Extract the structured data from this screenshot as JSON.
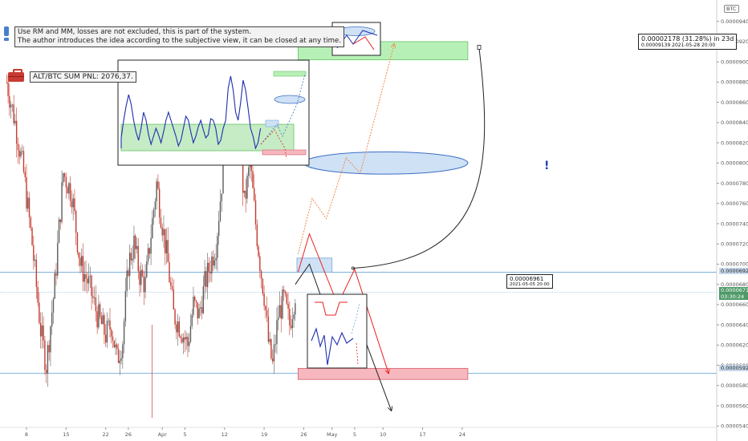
{
  "notes": {
    "line1": "Use RM and MM, losses are not excluded, this is part of the system.",
    "line2": "The author introduces the idea according to the subjective view, it can be closed at any time."
  },
  "pnl": {
    "label": "ALT/BTC SUM PNL: 2076,37."
  },
  "currency_label": "BTC",
  "exclamation": "!",
  "projection": {
    "main": "0.00002178 (31.28%) in 23d",
    "sub": "0.00009139     2021-05-28  20:00"
  },
  "marker": {
    "price": "0.00006961",
    "date": "2021-05-05 20:00"
  },
  "price_tags": {
    "upper": "0.00006927",
    "current": "0.00006717",
    "countdown": "03:30:24",
    "lower": "0.00005923"
  },
  "chart_data": {
    "type": "candlestick",
    "y_axis": {
      "min": 5.41e-05,
      "max": 9.58e-05,
      "ticks": [
        "0.00009400",
        "0.00009200",
        "0.00009000",
        "0.00008800",
        "0.00008600",
        "0.00008400",
        "0.00008200",
        "0.00008000",
        "0.00007800",
        "0.00007600",
        "0.00007400",
        "0.00007200",
        "0.00007000",
        "0.00006800",
        "0.00006600",
        "0.00006400",
        "0.00006200",
        "0.00006000",
        "0.00005800",
        "0.00005600",
        "0.00005400"
      ]
    },
    "x_axis": {
      "ticks": [
        {
          "label": "8",
          "day": 0
        },
        {
          "label": "15",
          "day": 7
        },
        {
          "label": "22",
          "day": 14
        },
        {
          "label": "26",
          "day": 18
        },
        {
          "label": "Apr",
          "day": 24
        },
        {
          "label": "5",
          "day": 28
        },
        {
          "label": "12",
          "day": 35
        },
        {
          "label": "19",
          "day": 42
        },
        {
          "label": "26",
          "day": 49
        },
        {
          "label": "May",
          "day": 54
        },
        {
          "label": "5",
          "day": 58
        },
        {
          "label": "10",
          "day": 63
        },
        {
          "label": "17",
          "day": 70
        },
        {
          "label": "24",
          "day": 77
        }
      ]
    },
    "price_path": [
      [
        -3.5,
        8.8e-05
      ],
      [
        -2,
        8.4e-05
      ],
      [
        -0.5,
        7.9e-05
      ],
      [
        1,
        7.2e-05
      ],
      [
        2.5,
        6.35e-05
      ],
      [
        3.5,
        6e-05
      ],
      [
        5,
        6.8e-05
      ],
      [
        6.5,
        7.9e-05
      ],
      [
        8,
        7.7e-05
      ],
      [
        9.5,
        7e-05
      ],
      [
        11,
        6.8e-05
      ],
      [
        12.5,
        6.5e-05
      ],
      [
        14,
        6.3e-05
      ],
      [
        15,
        6.4e-05
      ],
      [
        16,
        6.05e-05
      ],
      [
        17,
        6.25e-05
      ],
      [
        18,
        7e-05
      ],
      [
        19,
        7.2e-05
      ],
      [
        20,
        6.9e-05
      ],
      [
        21,
        6.8e-05
      ],
      [
        22,
        7.3e-05
      ],
      [
        23,
        7.8e-05
      ],
      [
        24,
        7.4e-05
      ],
      [
        25,
        7e-05
      ],
      [
        26,
        6.5e-05
      ],
      [
        27,
        6.4e-05
      ],
      [
        28.5,
        6.2e-05
      ],
      [
        29.5,
        6.6e-05
      ],
      [
        30.5,
        6.5e-05
      ],
      [
        31.5,
        6.8e-05
      ],
      [
        32.5,
        7e-05
      ],
      [
        33.5,
        7.2e-05
      ],
      [
        34.5,
        7.8e-05
      ],
      [
        35.5,
        8.8e-05
      ],
      [
        36.5,
        8.1e-05
      ],
      [
        37.5,
        8.3e-05
      ],
      [
        38.5,
        7.6e-05
      ],
      [
        39.5,
        8e-05
      ],
      [
        40.5,
        7.4e-05
      ],
      [
        41.5,
        6.9e-05
      ],
      [
        42,
        6.7e-05
      ],
      [
        42.8,
        6.2e-05
      ],
      [
        43.5,
        6e-05
      ],
      [
        44.5,
        6.5e-05
      ],
      [
        45.5,
        6.65e-05
      ],
      [
        46.5,
        6.4e-05
      ],
      [
        47.5,
        6.72e-05
      ]
    ],
    "horizontal_lines": [
      6.92e-05,
      6.72e-05,
      5.92e-05
    ],
    "zones": [
      {
        "name": "target-zone",
        "x": [
          48,
          78
        ],
        "y": [
          9.02e-05,
          9.2e-05
        ],
        "color": "#b7f0b7",
        "stroke": "#66c266"
      },
      {
        "name": "entry-zone",
        "x": [
          47.8,
          54
        ],
        "y": [
          6.92e-05,
          7.06e-05
        ],
        "color": "#cfe1f5",
        "stroke": "#7aa8d8"
      },
      {
        "name": "stop-zone",
        "x": [
          48,
          78
        ],
        "y": [
          5.86e-05,
          5.97e-05
        ],
        "color": "#f6b7be",
        "stroke": "#d85f6c"
      }
    ],
    "ellipse": {
      "cx": 63.5,
      "cy": 8e-05,
      "rx": 14.5,
      "ry": 1.1e-06,
      "color": "#cfe1f5",
      "stroke": "#3b6fc4"
    },
    "paths": [
      {
        "name": "orange-path",
        "color": "#f08a4b",
        "dashed": true,
        "arrow": true,
        "points": [
          [
            48,
            7.1e-05
          ],
          [
            50.5,
            7.65e-05
          ],
          [
            53,
            7.45e-05
          ],
          [
            56.5,
            8.05e-05
          ],
          [
            59,
            7.9e-05
          ],
          [
            65,
            9.18e-05
          ]
        ]
      },
      {
        "name": "red-path",
        "color": "#e8211e",
        "dashed": false,
        "arrow": true,
        "points": [
          [
            48,
            6.92e-05
          ],
          [
            50,
            7.3e-05
          ],
          [
            55,
            6.6e-05
          ],
          [
            58,
            6.95e-05
          ],
          [
            64,
            5.92e-05
          ]
        ]
      },
      {
        "name": "black-path",
        "color": "#222222",
        "dashed": false,
        "arrow": true,
        "points": [
          [
            47.5,
            6.8e-05
          ],
          [
            50,
            7e-05
          ],
          [
            55,
            6.22e-05
          ],
          [
            57.5,
            6.6e-05
          ],
          [
            64.5,
            5.55e-05
          ]
        ]
      }
    ],
    "curve": {
      "from": [
        57.7,
        6.96e-05
      ],
      "to": [
        80,
        9.18e-05
      ]
    }
  },
  "colors": {
    "bull": "#5c5c5c",
    "bear": "#c53b2e",
    "hline": "#6aa7d8",
    "current_tag": "#4f9a68",
    "upper_tag": "#c7d9ec",
    "lower_tag": "#c7d9ec"
  },
  "icons": {
    "info": "exclamation-icon",
    "pnl": "briefcase-icon"
  }
}
